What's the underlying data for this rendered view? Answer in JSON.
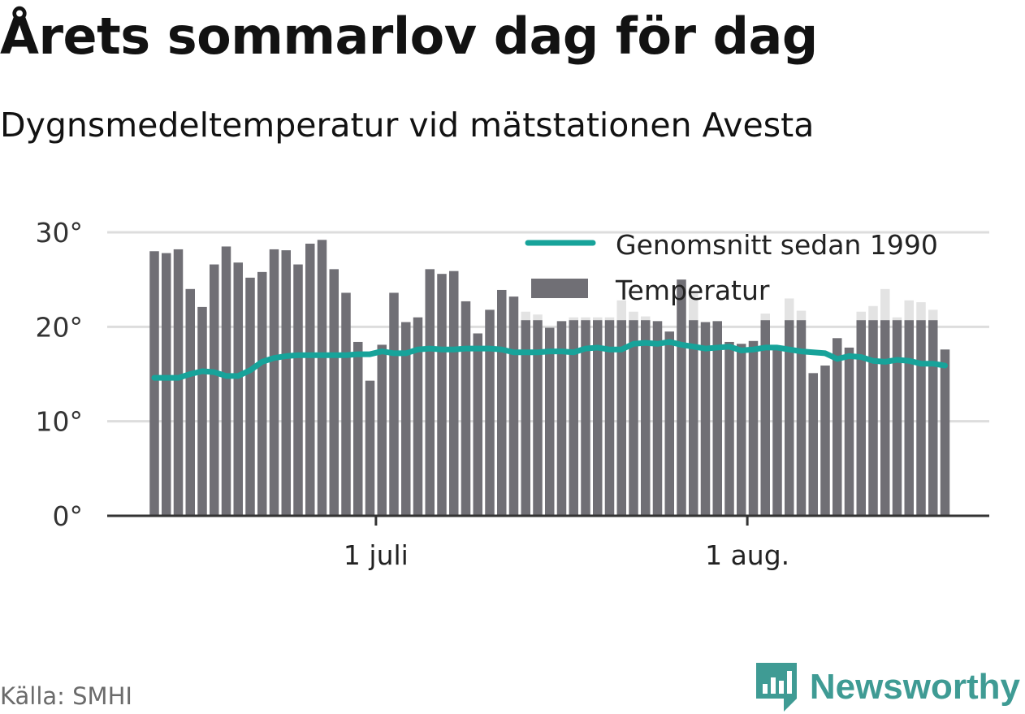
{
  "title": "Årets sommarlov dag för dag",
  "subtitle": "Dygnsmedeltemperatur vid mätstationen Avesta",
  "source": "Källa: SMHI",
  "brand": {
    "name": "Newsworthy",
    "logo_icon": "bar-chart-logo-icon"
  },
  "colors": {
    "bars": "#706f75",
    "bars_light": "#e3e3e3",
    "average_line": "#17a39a",
    "grid": "#dddddd",
    "axis": "#333333",
    "brand": "#3f9b94"
  },
  "chart_data": {
    "type": "bar",
    "grid": true,
    "legend_position": "top-right",
    "ylim": [
      0,
      30
    ],
    "yticks": [
      0,
      10,
      20,
      30
    ],
    "ytick_labels": [
      "0°",
      "10°",
      "20°",
      "30°"
    ],
    "xticks": [
      {
        "date": "2019-07-01",
        "label": "1 juli"
      },
      {
        "date": "2019-08-01",
        "label": "1 aug."
      }
    ],
    "x_dates": [
      "2019-06-12",
      "2019-06-13",
      "2019-06-14",
      "2019-06-15",
      "2019-06-16",
      "2019-06-17",
      "2019-06-18",
      "2019-06-19",
      "2019-06-20",
      "2019-06-21",
      "2019-06-22",
      "2019-06-23",
      "2019-06-24",
      "2019-06-25",
      "2019-06-26",
      "2019-06-27",
      "2019-06-28",
      "2019-06-29",
      "2019-06-30",
      "2019-07-01",
      "2019-07-02",
      "2019-07-03",
      "2019-07-04",
      "2019-07-05",
      "2019-07-06",
      "2019-07-07",
      "2019-07-08",
      "2019-07-09",
      "2019-07-10",
      "2019-07-11",
      "2019-07-12",
      "2019-07-13",
      "2019-07-14",
      "2019-07-15",
      "2019-07-16",
      "2019-07-17",
      "2019-07-18",
      "2019-07-19",
      "2019-07-20",
      "2019-07-21",
      "2019-07-22",
      "2019-07-23",
      "2019-07-24",
      "2019-07-25",
      "2019-07-26",
      "2019-07-27",
      "2019-07-28",
      "2019-07-29",
      "2019-07-30",
      "2019-07-31",
      "2019-08-01",
      "2019-08-02",
      "2019-08-03",
      "2019-08-04",
      "2019-08-05",
      "2019-08-06",
      "2019-08-07",
      "2019-08-08",
      "2019-08-09",
      "2019-08-10",
      "2019-08-11",
      "2019-08-12",
      "2019-08-13",
      "2019-08-14",
      "2019-08-15",
      "2019-08-16",
      "2019-08-17"
    ],
    "series": [
      {
        "name": "Temperatur",
        "values": [
          28.0,
          27.8,
          28.2,
          24.0,
          22.1,
          26.6,
          28.5,
          26.8,
          25.2,
          25.8,
          28.2,
          28.1,
          26.6,
          28.8,
          29.2,
          26.1,
          23.6,
          18.4,
          14.3,
          18.1,
          23.6,
          20.5,
          21.0,
          26.1,
          25.6,
          25.9,
          22.7,
          19.3,
          21.8,
          23.9,
          23.2,
          21.6,
          21.3,
          19.9,
          20.6,
          21.0,
          21.0,
          21.0,
          21.0,
          22.8,
          21.6,
          21.1,
          20.6,
          19.5,
          25.0,
          23.6,
          20.5,
          20.6,
          18.4,
          18.2,
          18.5,
          21.4,
          18.0,
          23.0,
          21.7,
          15.1,
          15.9,
          18.8,
          17.8,
          21.6,
          22.2,
          24.0,
          21.0,
          22.8,
          22.6,
          21.8,
          17.6
        ]
      },
      {
        "name": "Genomsnitt sedan 1990",
        "values": [
          14.6,
          14.6,
          14.6,
          15.0,
          15.3,
          15.2,
          14.8,
          14.8,
          15.4,
          16.3,
          16.7,
          16.9,
          17.0,
          17.0,
          17.0,
          17.0,
          17.0,
          17.1,
          17.1,
          17.4,
          17.2,
          17.2,
          17.6,
          17.7,
          17.6,
          17.6,
          17.7,
          17.7,
          17.7,
          17.6,
          17.3,
          17.3,
          17.3,
          17.4,
          17.4,
          17.3,
          17.7,
          17.8,
          17.6,
          17.6,
          18.2,
          18.3,
          18.2,
          18.4,
          18.1,
          17.9,
          17.7,
          17.8,
          17.9,
          17.5,
          17.6,
          17.8,
          17.8,
          17.6,
          17.4,
          17.3,
          17.2,
          16.6,
          16.9,
          16.8,
          16.4,
          16.3,
          16.5,
          16.4,
          16.1,
          16.1,
          15.9
        ]
      }
    ]
  }
}
